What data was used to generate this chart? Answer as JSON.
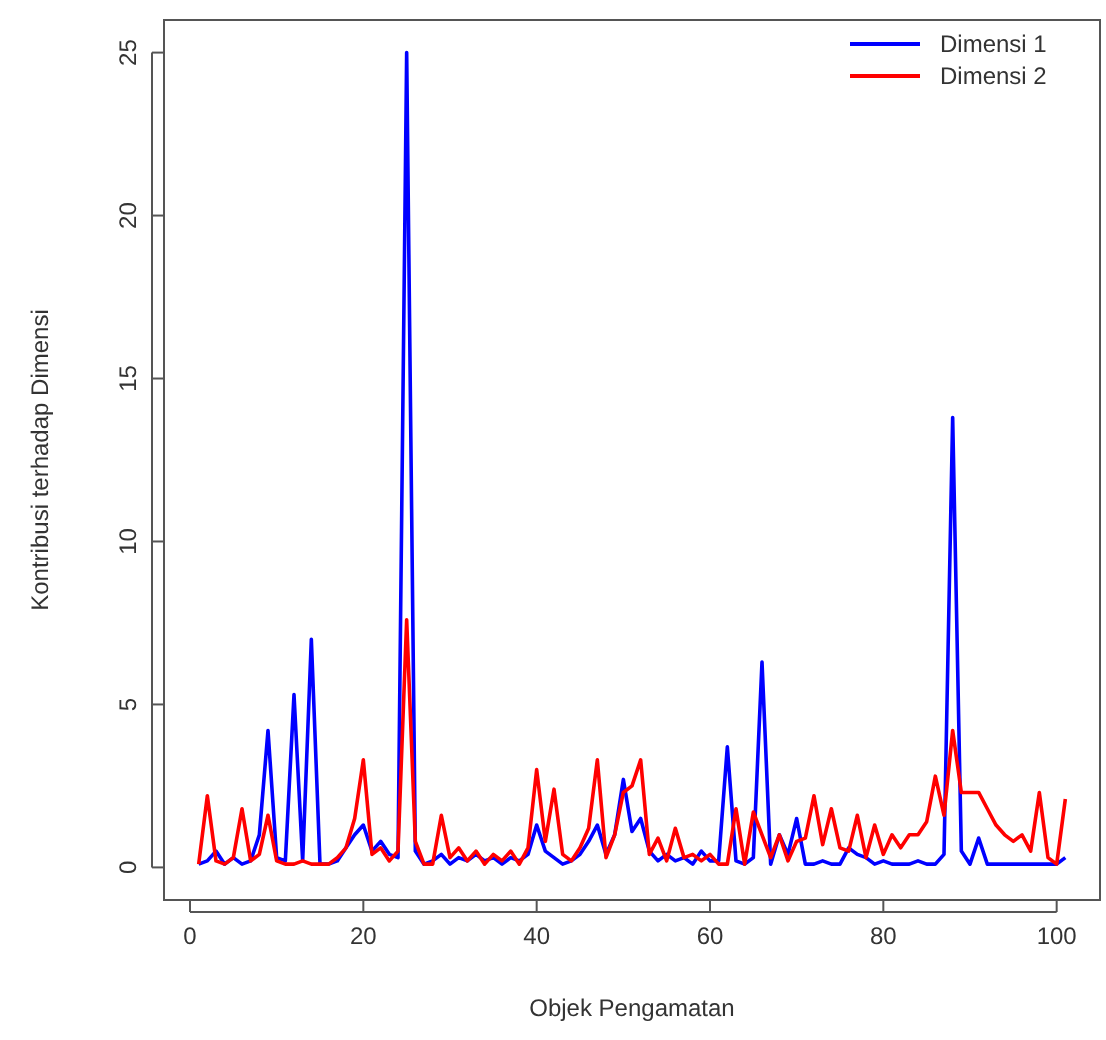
{
  "chart_data": {
    "type": "line",
    "xlabel": "Objek Pengamatan",
    "ylabel": "Kontribusi terhadap Dimensi",
    "x": [
      1,
      2,
      3,
      4,
      5,
      6,
      7,
      8,
      9,
      10,
      11,
      12,
      13,
      14,
      15,
      16,
      17,
      18,
      19,
      20,
      21,
      22,
      23,
      24,
      25,
      26,
      27,
      28,
      29,
      30,
      31,
      32,
      33,
      34,
      35,
      36,
      37,
      38,
      39,
      40,
      41,
      42,
      43,
      44,
      45,
      46,
      47,
      48,
      49,
      50,
      51,
      52,
      53,
      54,
      55,
      56,
      57,
      58,
      59,
      60,
      61,
      62,
      63,
      64,
      65,
      66,
      67,
      68,
      69,
      70,
      71,
      72,
      73,
      74,
      75,
      76,
      77,
      78,
      79,
      80,
      81,
      82,
      83,
      84,
      85,
      86,
      87,
      88,
      89,
      90,
      91,
      92,
      93,
      94,
      95,
      96,
      97,
      98,
      99,
      100,
      101
    ],
    "xlim": [
      -3,
      105
    ],
    "xticks": [
      0,
      20,
      40,
      60,
      80,
      100
    ],
    "ylim": [
      -1,
      26
    ],
    "yticks": [
      0,
      5,
      10,
      15,
      20,
      25
    ],
    "grid": false,
    "legend": "top right",
    "marker": "none",
    "line_style": "solid",
    "series": [
      {
        "name": "Dimensi 1",
        "color": "#0000ff",
        "values": [
          0.1,
          0.2,
          0.5,
          0.1,
          0.3,
          0.1,
          0.2,
          1.0,
          4.2,
          0.3,
          0.2,
          5.3,
          0.2,
          7.0,
          0.1,
          0.1,
          0.2,
          0.6,
          1.0,
          1.3,
          0.5,
          0.8,
          0.4,
          0.3,
          25,
          0.5,
          0.1,
          0.2,
          0.4,
          0.1,
          0.3,
          0.2,
          0.4,
          0.2,
          0.3,
          0.1,
          0.3,
          0.2,
          0.4,
          1.3,
          0.5,
          0.3,
          0.1,
          0.2,
          0.4,
          0.8,
          1.3,
          0.4,
          1.0,
          2.7,
          1.1,
          1.5,
          0.5,
          0.2,
          0.4,
          0.2,
          0.3,
          0.1,
          0.5,
          0.2,
          0.2,
          3.7,
          0.2,
          0.1,
          0.3,
          6.3,
          0.1,
          1.0,
          0.4,
          1.5,
          0.1,
          0.1,
          0.2,
          0.1,
          0.1,
          0.6,
          0.4,
          0.3,
          0.1,
          0.2,
          0.1,
          0.1,
          0.1,
          0.2,
          0.1,
          0.1,
          0.4,
          13.8,
          0.5,
          0.1,
          0.9,
          0.1,
          0.1,
          0.1,
          0.1,
          0.1,
          0.1,
          0.1,
          0.1,
          0.1,
          0.3
        ]
      },
      {
        "name": "Dimensi 2",
        "color": "#ff0000",
        "values": [
          0.1,
          2.2,
          0.2,
          0.1,
          0.3,
          1.8,
          0.2,
          0.4,
          1.6,
          0.2,
          0.1,
          0.1,
          0.2,
          0.1,
          0.1,
          0.1,
          0.3,
          0.6,
          1.5,
          3.3,
          0.4,
          0.6,
          0.2,
          0.5,
          7.6,
          0.8,
          0.1,
          0.1,
          1.6,
          0.3,
          0.6,
          0.2,
          0.5,
          0.1,
          0.4,
          0.2,
          0.5,
          0.1,
          0.6,
          3.0,
          0.8,
          2.4,
          0.4,
          0.2,
          0.6,
          1.2,
          3.3,
          0.3,
          1.0,
          2.3,
          2.5,
          3.3,
          0.4,
          0.9,
          0.2,
          1.2,
          0.3,
          0.4,
          0.2,
          0.4,
          0.1,
          0.1,
          1.8,
          0.1,
          1.7,
          1.0,
          0.3,
          1.0,
          0.2,
          0.8,
          0.9,
          2.2,
          0.7,
          1.8,
          0.6,
          0.5,
          1.6,
          0.3,
          1.3,
          0.4,
          1.0,
          0.6,
          1.0,
          1.0,
          1.4,
          2.8,
          1.6,
          4.2,
          2.3,
          2.3,
          2.3,
          1.8,
          1.3,
          1.0,
          0.8,
          1.0,
          0.5,
          2.3,
          0.3,
          0.1,
          2.1
        ]
      }
    ]
  }
}
